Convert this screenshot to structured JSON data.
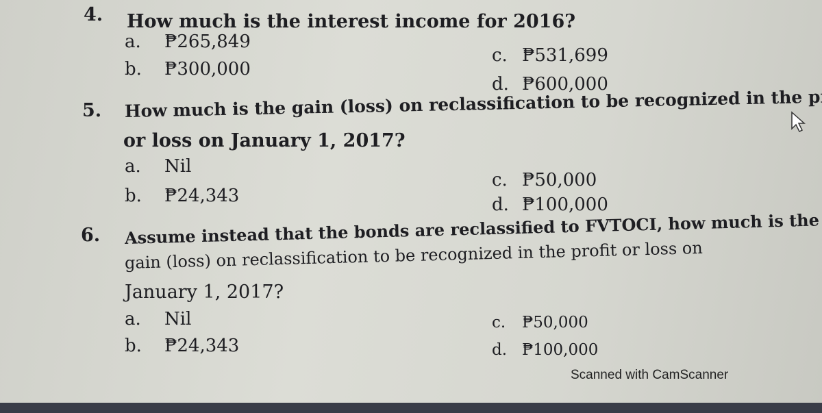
{
  "questions": [
    {
      "number": "4.",
      "lines": [
        "How much is the interest income for 2016?"
      ],
      "options": [
        {
          "letter": "a.",
          "text": "₱265,849"
        },
        {
          "letter": "b.",
          "text": "₱300,000"
        },
        {
          "letter": "c.",
          "text": "₱531,699"
        },
        {
          "letter": "d.",
          "text": "₱600,000"
        }
      ]
    },
    {
      "number": "5.",
      "lines": [
        "How much is the gain (loss) on reclassification to be recognized in the profit",
        "or loss on January 1, 2017?"
      ],
      "options": [
        {
          "letter": "a.",
          "text": "Nil"
        },
        {
          "letter": "b.",
          "text": "₱24,343"
        },
        {
          "letter": "c.",
          "text": "₱50,000"
        },
        {
          "letter": "d.",
          "text": "₱100,000"
        }
      ]
    },
    {
      "number": "6.",
      "lines": [
        "Assume instead that the bonds are reclassified to FVTOCI, how much is the",
        "gain (loss) on reclassification to be recognized in the profit or loss on",
        "January 1, 2017?"
      ],
      "options": [
        {
          "letter": "a.",
          "text": "Nil"
        },
        {
          "letter": "b.",
          "text": "₱24,343"
        },
        {
          "letter": "c.",
          "text": "₱50,000"
        },
        {
          "letter": "d.",
          "text": "₱100,000"
        }
      ]
    }
  ],
  "footer": "Scanned with CamScanner"
}
